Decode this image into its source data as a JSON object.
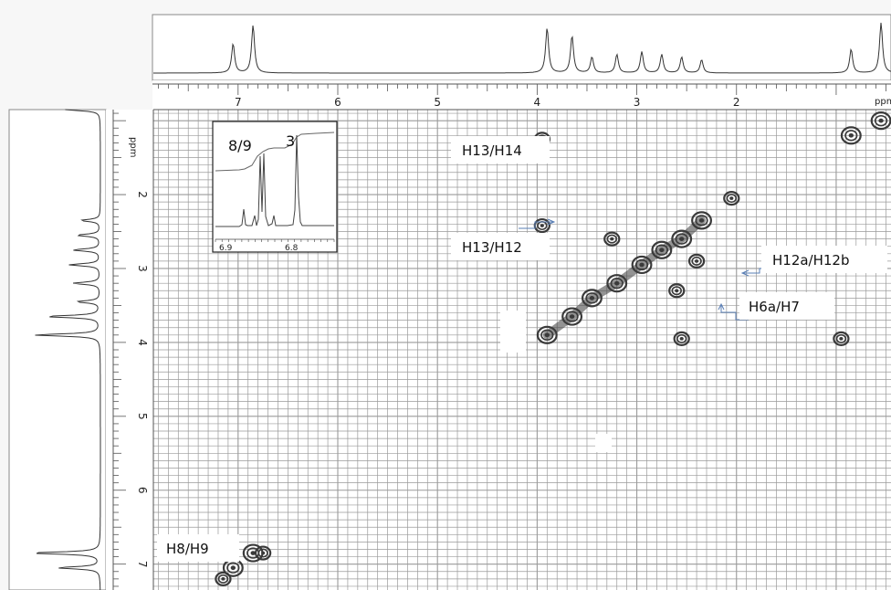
{
  "chart_data": {
    "type": "contour",
    "xunit": "ppm",
    "yunit": "ppm",
    "xlim": [
      7.85,
      0.45
    ],
    "ylim": [
      0.85,
      7.35
    ],
    "x_ticks": [
      {
        "value": 7,
        "label": "7"
      },
      {
        "value": 6,
        "label": "6"
      },
      {
        "value": 5,
        "label": "5"
      },
      {
        "value": 4,
        "label": "4"
      },
      {
        "value": 3,
        "label": "3"
      },
      {
        "value": 2,
        "label": "2"
      }
    ],
    "y_ticks": [
      {
        "value": 2,
        "label": "2"
      },
      {
        "value": 3,
        "label": "3"
      },
      {
        "value": 4,
        "label": "4"
      },
      {
        "value": 5,
        "label": "5"
      },
      {
        "value": 6,
        "label": "6"
      },
      {
        "value": 7,
        "label": "7"
      }
    ],
    "x_unit_label": "ppm",
    "y_unit_label": "ppm",
    "diagonal": [
      [
        7.05,
        7.05
      ],
      [
        6.85,
        6.85
      ],
      [
        3.9,
        3.9
      ],
      [
        3.65,
        3.65
      ],
      [
        3.45,
        3.4
      ],
      [
        3.2,
        3.2
      ],
      [
        2.95,
        2.95
      ],
      [
        2.75,
        2.75
      ],
      [
        2.55,
        2.6
      ],
      [
        2.35,
        2.35
      ],
      [
        0.85,
        1.2
      ],
      [
        0.55,
        1.0
      ]
    ],
    "cross_peaks": [
      {
        "x": 3.95,
        "y": 1.25
      },
      {
        "x": 3.95,
        "y": 2.42
      },
      {
        "x": 3.25,
        "y": 2.6
      },
      {
        "x": 2.05,
        "y": 2.05
      },
      {
        "x": 2.4,
        "y": 2.9
      },
      {
        "x": 2.6,
        "y": 3.3
      },
      {
        "x": 2.55,
        "y": 3.95
      },
      {
        "x": 0.95,
        "y": 3.95
      },
      {
        "x": 6.75,
        "y": 6.85
      },
      {
        "x": 7.15,
        "y": 7.2
      }
    ],
    "annotations": [
      {
        "label": "H13/H14",
        "x": 4.6,
        "y": 1.3
      },
      {
        "label": "H13/H12",
        "x": 4.6,
        "y": 2.6
      },
      {
        "label": "H12a/H12b",
        "x": 1.5,
        "y": 2.8
      },
      {
        "label": "H6a/H7",
        "x": 1.95,
        "y": 3.4
      },
      {
        "label": "H8/H9",
        "x": 7.4,
        "y": 6.75
      }
    ],
    "inset": {
      "labels": [
        "8/9",
        "3"
      ],
      "x_tick_labels": [
        "6.9",
        "6.8"
      ],
      "xlim": [
        6.93,
        6.75
      ]
    }
  },
  "colors": {
    "grid": "#9a9a9a",
    "spectrum": "#333333",
    "contour": "#3a3a3a"
  }
}
